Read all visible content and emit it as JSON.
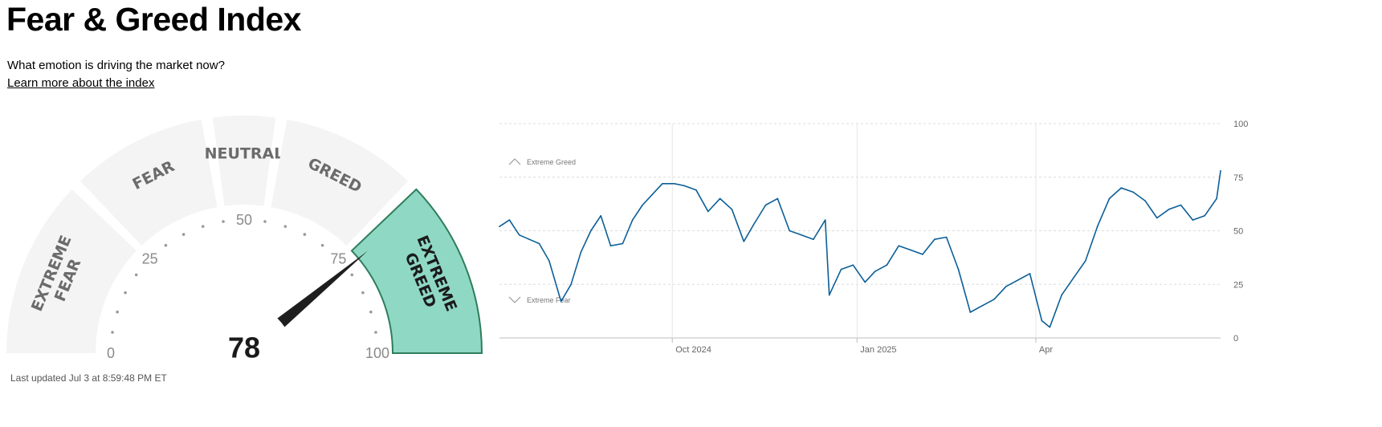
{
  "header": {
    "title": "Fear & Greed Index",
    "subtitle": "What emotion is driving the market now?",
    "learn_more": "Learn more about the index"
  },
  "gauge": {
    "value": 78,
    "value_label": "78",
    "segments": [
      {
        "label_lines": [
          "EXTREME",
          "FEAR"
        ],
        "from": 0,
        "to": 25
      },
      {
        "label_lines": [
          "FEAR"
        ],
        "from": 25,
        "to": 45
      },
      {
        "label_lines": [
          "NEUTRAL"
        ],
        "from": 45,
        "to": 55
      },
      {
        "label_lines": [
          "GREED"
        ],
        "from": 55,
        "to": 75
      },
      {
        "label_lines": [
          "EXTREME",
          "GREED"
        ],
        "from": 75,
        "to": 100
      }
    ],
    "tick_labels": [
      "0",
      "25",
      "50",
      "75",
      "100"
    ],
    "active_segment": 4,
    "colors": {
      "inactive": "#f4f4f4",
      "active": "#8fd8c4",
      "active_border": "#2e7d5b",
      "needle": "#1e1e1e"
    },
    "last_updated": "Last updated Jul 3 at 8:59:48 PM ET"
  },
  "chart_data": {
    "type": "line",
    "title": "",
    "xlabel": "",
    "ylabel": "",
    "ylim": [
      0,
      100
    ],
    "x_tick_labels": [
      "Oct 2024",
      "Jan 2025",
      "Apr"
    ],
    "y_tick_labels": [
      "0",
      "25",
      "50",
      "75",
      "100"
    ],
    "bands": [
      "Extreme Greed",
      "Extreme Fear"
    ],
    "grid": true,
    "y_axis_side": "right",
    "line_color": "#0b5f98",
    "series": [
      {
        "name": "",
        "x": [
          "2024-07-05",
          "2024-07-10",
          "2024-07-15",
          "2024-07-20",
          "2024-07-25",
          "2024-07-30",
          "2024-08-05",
          "2024-08-10",
          "2024-08-15",
          "2024-08-20",
          "2024-08-25",
          "2024-08-30",
          "2024-09-05",
          "2024-09-10",
          "2024-09-15",
          "2024-09-20",
          "2024-09-25",
          "2024-10-01",
          "2024-10-06",
          "2024-10-12",
          "2024-10-18",
          "2024-10-24",
          "2024-10-30",
          "2024-11-05",
          "2024-11-10",
          "2024-11-16",
          "2024-11-22",
          "2024-11-28",
          "2024-12-04",
          "2024-12-10",
          "2024-12-16",
          "2024-12-18",
          "2024-12-24",
          "2024-12-30",
          "2025-01-05",
          "2025-01-10",
          "2025-01-16",
          "2025-01-22",
          "2025-01-28",
          "2025-02-03",
          "2025-02-09",
          "2025-02-15",
          "2025-02-21",
          "2025-02-27",
          "2025-03-05",
          "2025-03-11",
          "2025-03-17",
          "2025-03-23",
          "2025-03-29",
          "2025-04-04",
          "2025-04-08",
          "2025-04-14",
          "2025-04-20",
          "2025-04-26",
          "2025-05-02",
          "2025-05-08",
          "2025-05-14",
          "2025-05-20",
          "2025-05-26",
          "2025-06-01",
          "2025-06-07",
          "2025-06-13",
          "2025-06-19",
          "2025-06-25",
          "2025-07-01",
          "2025-07-03"
        ],
        "values": [
          52,
          55,
          48,
          46,
          44,
          36,
          17,
          25,
          40,
          50,
          57,
          43,
          44,
          55,
          62,
          67,
          72,
          72,
          71,
          69,
          59,
          65,
          60,
          45,
          53,
          62,
          65,
          50,
          48,
          46,
          55,
          20,
          32,
          34,
          26,
          31,
          34,
          43,
          41,
          39,
          46,
          47,
          32,
          12,
          15,
          18,
          24,
          27,
          30,
          8,
          5,
          20,
          28,
          36,
          52,
          65,
          70,
          68,
          64,
          56,
          60,
          62,
          55,
          57,
          65,
          78
        ]
      }
    ]
  }
}
